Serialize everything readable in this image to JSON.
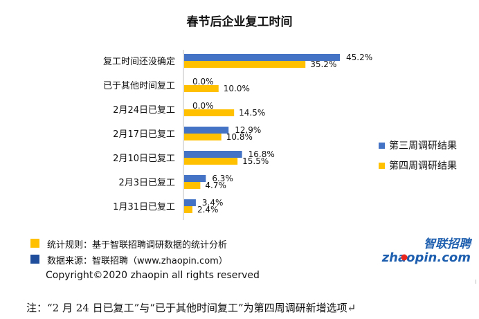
{
  "chart_data": {
    "type": "bar",
    "orientation": "horizontal",
    "title": "春节后企业复工时间",
    "categories": [
      "复工时间还没确定",
      "已于其他时间复工",
      "2月24日已复工",
      "2月17日已复工",
      "2月10日已复工",
      "2月3日已复工",
      "1月31日已复工"
    ],
    "series": [
      {
        "name": "第三周调研结果",
        "color": "#4472C4",
        "values": [
          45.2,
          0.0,
          0.0,
          12.9,
          16.8,
          6.3,
          3.4
        ],
        "labels": [
          "45.2%",
          "0.0%",
          "0.0%",
          "12.9%",
          "16.8%",
          "6.3%",
          "3.4%"
        ]
      },
      {
        "name": "第四周调研结果",
        "color": "#FFC000",
        "values": [
          35.2,
          10.0,
          14.5,
          10.8,
          15.5,
          4.7,
          2.4
        ],
        "labels": [
          "35.2%",
          "10.0%",
          "14.5%",
          "10.8%",
          "15.5%",
          "4.7%",
          "2.4%"
        ]
      }
    ],
    "xlim": [
      0,
      50
    ],
    "grid": false,
    "legend_position": "right"
  },
  "footer": {
    "rule_text": "统计规则：基于智联招聘调研数据的统计分析",
    "rule_color": "#FFC000",
    "source_text": "数据来源：智联招聘（www.zhaopin.com）",
    "source_color": "#1F4E9C",
    "copyright": "Copyright©2020 zhaopin all rights reserved"
  },
  "logo": {
    "cn": "智联招聘",
    "en": "zhaopin.com",
    "color": "#1F5FAF",
    "dot_color": "#E8271F"
  },
  "note": "注：“2 月 24 日已复工”与“已于其他时间复工”为第四周调研新增选项↵"
}
